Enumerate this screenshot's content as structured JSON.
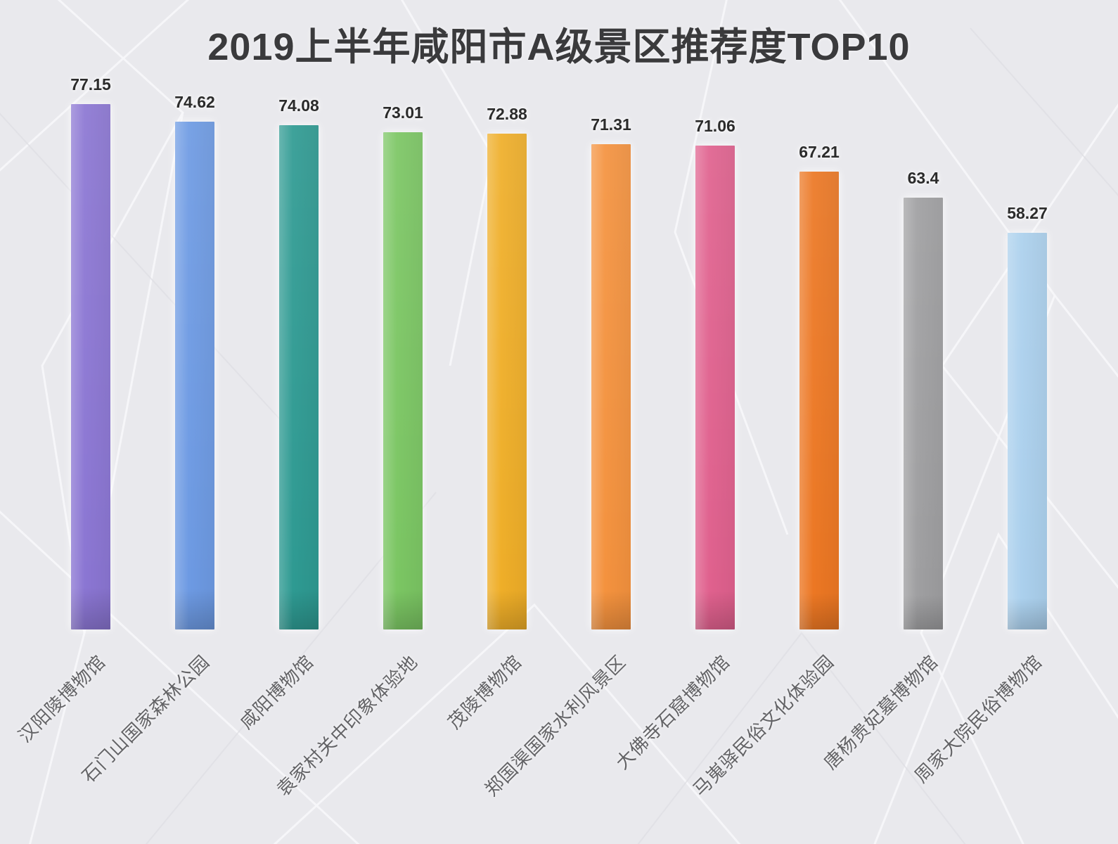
{
  "title": "2019上半年咸阳市A级景区推荐度TOP10",
  "colors": {
    "background": "#e9e9ed",
    "title_text": "#3a3a3c",
    "value_label_text": "#2b2b2b",
    "category_label_text": "#636366"
  },
  "chart_data": {
    "type": "bar",
    "title": "2019上半年咸阳市A级景区推荐度TOP10",
    "categories": [
      "汉阳陵博物馆",
      "石门山国家森林公园",
      "咸阳博物馆",
      "袁家村关中印象体验地",
      "茂陵博物馆",
      "郑国渠国家水利风景区",
      "大佛寺石窟博物馆",
      "马嵬驿民俗文化体验园",
      "唐杨贵妃墓博物馆",
      "周家大院民俗博物馆"
    ],
    "values": [
      77.15,
      74.62,
      74.08,
      73.01,
      72.88,
      71.31,
      71.06,
      67.21,
      63.4,
      58.27
    ],
    "bar_colors": [
      "#8b76d3",
      "#6d9ae3",
      "#2e9a92",
      "#7bc663",
      "#efae28",
      "#f4923e",
      "#e0618e",
      "#ec7723",
      "#9f9fa1",
      "#abd0ed"
    ],
    "xlabel": "",
    "ylabel": "",
    "ylim": [
      0,
      80
    ],
    "grid": "off",
    "legend": "none",
    "value_labels": "above bars",
    "category_label_rotation_deg": 45
  }
}
